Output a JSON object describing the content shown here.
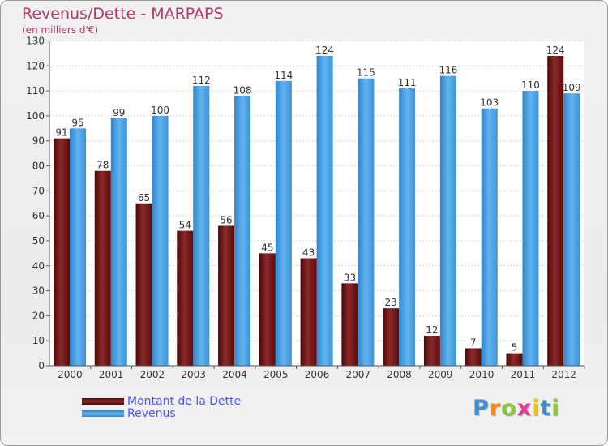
{
  "header": {
    "title": "Revenus/Dette - MARPAPS",
    "subtitle": "(en milliers d'€)"
  },
  "colors": {
    "title": "#b0396b",
    "dette": "#6b0f0f",
    "revenus": "#4fa6e6",
    "legend_text": "#4a55ff"
  },
  "chart_data": {
    "type": "bar",
    "title": "Revenus/Dette - MARPAPS",
    "ylabel": "(en milliers d'€)",
    "xlabel": "",
    "ylim": [
      0,
      130
    ],
    "yticks": [
      0,
      10,
      20,
      30,
      40,
      50,
      60,
      70,
      80,
      90,
      100,
      110,
      120,
      130
    ],
    "grid": true,
    "legend_position": "bottom-left",
    "categories": [
      "2000",
      "2001",
      "2002",
      "2003",
      "2004",
      "2005",
      "2006",
      "2007",
      "2008",
      "2009",
      "2010",
      "2011",
      "2012"
    ],
    "series": [
      {
        "name": "Montant de la Dette",
        "values": [
          91,
          78,
          65,
          54,
          56,
          45,
          43,
          33,
          23,
          12,
          7,
          5,
          124
        ]
      },
      {
        "name": "Revenus",
        "values": [
          95,
          99,
          100,
          112,
          108,
          114,
          124,
          115,
          111,
          116,
          103,
          110,
          109
        ]
      }
    ]
  },
  "legend": {
    "items": [
      {
        "label": "Montant de la Dette"
      },
      {
        "label": "Revenus"
      }
    ]
  },
  "logo": {
    "text": "Proxiti",
    "letter_colors": [
      "#3e8ed6",
      "#f08a1c",
      "#8cc63f",
      "#e43c8e",
      "#f2c21c",
      "#3e8ed6",
      "#8cc63f"
    ]
  }
}
